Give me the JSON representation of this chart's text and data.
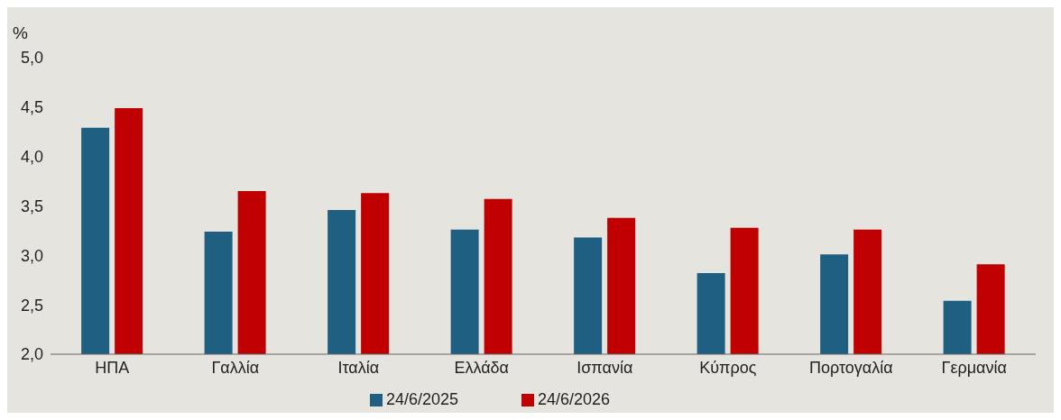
{
  "chart_data": {
    "type": "bar",
    "ylabel": "%",
    "categories": [
      "ΗΠΑ",
      "Γαλλία",
      "Ιταλία",
      "Ελλάδα",
      "Ισπανία",
      "Κύπρος",
      "Πορτογαλία",
      "Γερμανία"
    ],
    "series": [
      {
        "name": "24/6/2025",
        "color": "#1f5f82",
        "values": [
          4.29,
          3.24,
          3.46,
          3.26,
          3.18,
          2.82,
          3.01,
          2.54
        ]
      },
      {
        "name": "24/6/2026",
        "color": "#c00000",
        "values": [
          4.49,
          3.65,
          3.63,
          3.57,
          3.38,
          3.28,
          3.26,
          2.91
        ]
      }
    ],
    "ylim": [
      2.0,
      5.0
    ],
    "yticks": [
      {
        "value": 2.0,
        "label": "2,0"
      },
      {
        "value": 2.5,
        "label": "2,5"
      },
      {
        "value": 3.0,
        "label": "3,0"
      },
      {
        "value": 3.5,
        "label": "3,5"
      },
      {
        "value": 4.0,
        "label": "4,0"
      },
      {
        "value": 4.5,
        "label": "4,5"
      },
      {
        "value": 5.0,
        "label": "5,0"
      }
    ],
    "grid": false,
    "legend": "bottom"
  }
}
